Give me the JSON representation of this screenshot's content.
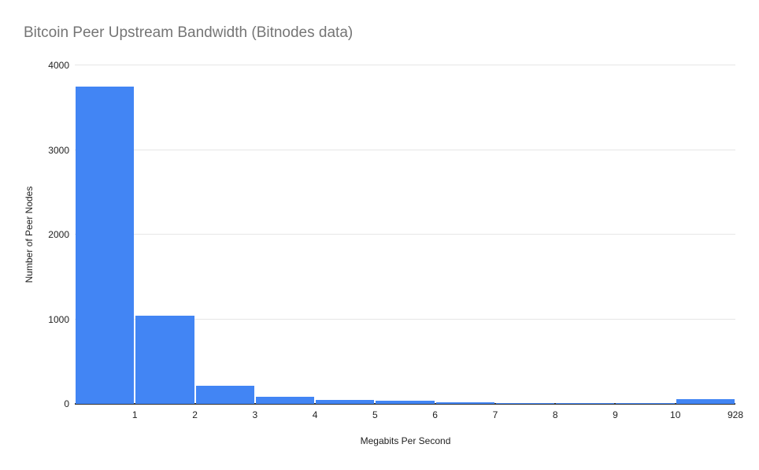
{
  "chart_data": {
    "type": "bar",
    "title": "Bitcoin Peer Upstream Bandwidth (Bitnodes data)",
    "categories": [
      "1",
      "2",
      "3",
      "4",
      "5",
      "6",
      "7",
      "8",
      "9",
      "10",
      "928"
    ],
    "values": [
      3750,
      1040,
      210,
      85,
      50,
      33,
      20,
      12,
      8,
      6,
      55
    ],
    "xlabel": "Megabits Per Second",
    "ylabel": "Number of Peer Nodes",
    "ylim": [
      0,
      4000
    ],
    "yticks": [
      0,
      1000,
      2000,
      3000,
      4000
    ],
    "grid": true,
    "legend": "none",
    "colors": {
      "bar": "#4285f4",
      "title": "#757575",
      "tick_label": "#222222",
      "gridline": "#e6e6e6",
      "axis_line": "#333333",
      "background": "#ffffff"
    }
  }
}
